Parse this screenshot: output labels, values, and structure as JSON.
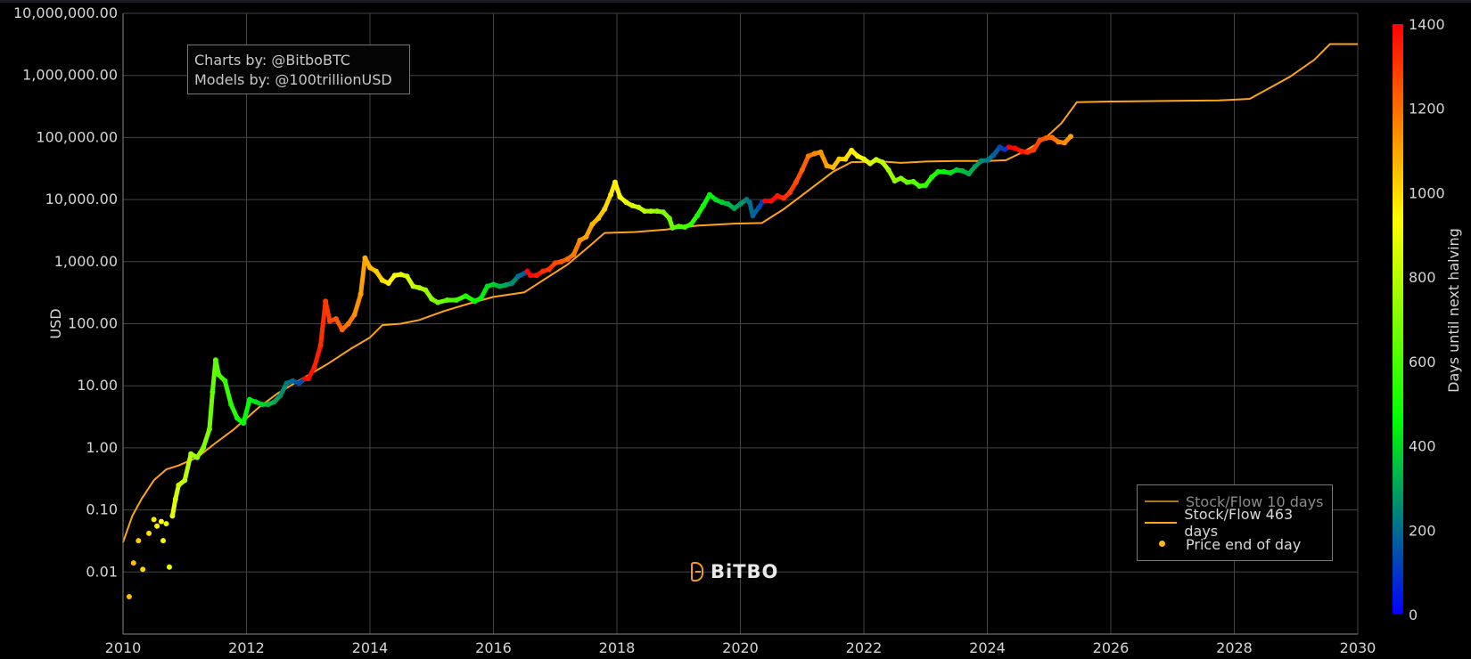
{
  "credits": {
    "line1": "Charts by: @BitboBTC",
    "line2": "Models by: @100trillionUSD"
  },
  "brand": {
    "name": "BiTBO"
  },
  "legend": {
    "items": [
      {
        "label": "Stock/Flow 10 days",
        "color": "#a9761a",
        "kind": "line",
        "dim": true
      },
      {
        "label": "Stock/Flow 463 days",
        "color": "#ffa31a",
        "kind": "line",
        "dim": false
      },
      {
        "label": "Price end of day",
        "color": "#ffb81a",
        "kind": "marker",
        "dim": false
      }
    ]
  },
  "colorbar": {
    "title": "Days until next halving",
    "min": 0,
    "max": 1400,
    "ticks": [
      0,
      200,
      400,
      600,
      800,
      1000,
      1200,
      1400
    ],
    "colorscale": [
      "#0000ff",
      "#00ff00",
      "#ffff00",
      "#ff0000"
    ]
  },
  "chart_data": {
    "type": "scatter",
    "ylabel": "USD",
    "xlabel": "",
    "yscale": "log",
    "xlim": [
      2010,
      2030
    ],
    "ylim": [
      0.001,
      10000000
    ],
    "x_ticks": [
      "2010",
      "2012",
      "2014",
      "2016",
      "2018",
      "2020",
      "2022",
      "2024",
      "2026",
      "2028",
      "2030"
    ],
    "y_ticks": [
      {
        "value": 0.01,
        "label": "0.01"
      },
      {
        "value": 0.1,
        "label": "0.10"
      },
      {
        "value": 1,
        "label": "1.00"
      },
      {
        "value": 10,
        "label": "10.00"
      },
      {
        "value": 100,
        "label": "100.00"
      },
      {
        "value": 1000,
        "label": "1,000.00"
      },
      {
        "value": 10000,
        "label": "10,000.00"
      },
      {
        "value": 100000,
        "label": "100,000.00"
      },
      {
        "value": 1000000,
        "label": "1,000,000.00"
      },
      {
        "value": 10000000,
        "label": "10,000,000.00"
      }
    ],
    "grid": true,
    "legend_position": "bottom-right",
    "series": [
      {
        "name": "Stock/Flow 463 days",
        "kind": "line",
        "color": "#ffa31a",
        "points": [
          [
            2010.0,
            0.03
          ],
          [
            2010.15,
            0.08
          ],
          [
            2010.3,
            0.15
          ],
          [
            2010.5,
            0.3
          ],
          [
            2010.7,
            0.45
          ],
          [
            2010.9,
            0.52
          ],
          [
            2011.2,
            0.7
          ],
          [
            2011.5,
            1.2
          ],
          [
            2011.8,
            2.0
          ],
          [
            2012.2,
            4.5
          ],
          [
            2012.5,
            7.5
          ],
          [
            2012.9,
            13
          ],
          [
            2013.3,
            22
          ],
          [
            2013.7,
            40
          ],
          [
            2014.0,
            60
          ],
          [
            2014.2,
            95
          ],
          [
            2014.5,
            100
          ],
          [
            2014.8,
            115
          ],
          [
            2015.2,
            160
          ],
          [
            2015.6,
            210
          ],
          [
            2016.0,
            270
          ],
          [
            2016.5,
            320
          ],
          [
            2016.8,
            500
          ],
          [
            2017.2,
            900
          ],
          [
            2017.5,
            1600
          ],
          [
            2017.8,
            2900
          ],
          [
            2018.3,
            3000
          ],
          [
            2018.8,
            3300
          ],
          [
            2019.3,
            3800
          ],
          [
            2019.9,
            4100
          ],
          [
            2020.35,
            4200
          ],
          [
            2020.7,
            7000
          ],
          [
            2021.1,
            14000
          ],
          [
            2021.5,
            28000
          ],
          [
            2021.8,
            40000
          ],
          [
            2022.3,
            41000
          ],
          [
            2022.6,
            39000
          ],
          [
            2023.0,
            41000
          ],
          [
            2023.5,
            42000
          ],
          [
            2024.0,
            42000
          ],
          [
            2024.3,
            43000
          ],
          [
            2024.6,
            60000
          ],
          [
            2024.9,
            90000
          ],
          [
            2025.2,
            170000
          ],
          [
            2025.45,
            370000
          ],
          [
            2026.0,
            380000
          ],
          [
            2027.0,
            390000
          ],
          [
            2027.75,
            395000
          ],
          [
            2028.25,
            420000
          ],
          [
            2028.6,
            650000
          ],
          [
            2028.9,
            950000
          ],
          [
            2029.3,
            1800000
          ],
          [
            2029.55,
            3200000
          ],
          [
            2030.0,
            3200000
          ]
        ]
      },
      {
        "name": "Price end of day",
        "kind": "marker",
        "color_by": "days_until_halving",
        "points": [
          [
            2010.1,
            0.004,
            1050
          ],
          [
            2010.17,
            0.014,
            1040
          ],
          [
            2010.25,
            0.032,
            1020
          ],
          [
            2010.32,
            0.011,
            1000
          ],
          [
            2010.42,
            0.042,
            980
          ],
          [
            2010.5,
            0.07,
            960
          ],
          [
            2010.55,
            0.055,
            940
          ],
          [
            2010.62,
            0.065,
            920
          ],
          [
            2010.65,
            0.032,
            910
          ],
          [
            2010.7,
            0.06,
            900
          ],
          [
            2010.75,
            0.012,
            890
          ],
          [
            2010.8,
            0.08,
            880
          ],
          [
            2010.85,
            0.15,
            850
          ],
          [
            2010.9,
            0.25,
            830
          ],
          [
            2011.0,
            0.3,
            800
          ],
          [
            2011.1,
            0.8,
            760
          ],
          [
            2011.2,
            0.7,
            730
          ],
          [
            2011.3,
            1.0,
            700
          ],
          [
            2011.4,
            2.0,
            660
          ],
          [
            2011.45,
            8,
            640
          ],
          [
            2011.5,
            26,
            620
          ],
          [
            2011.55,
            15,
            600
          ],
          [
            2011.65,
            12,
            560
          ],
          [
            2011.75,
            5,
            530
          ],
          [
            2011.85,
            3,
            500
          ],
          [
            2011.95,
            2.5,
            470
          ],
          [
            2012.05,
            6,
            440
          ],
          [
            2012.15,
            5.5,
            410
          ],
          [
            2012.25,
            5,
            380
          ],
          [
            2012.35,
            5,
            340
          ],
          [
            2012.45,
            5.5,
            300
          ],
          [
            2012.55,
            7,
            260
          ],
          [
            2012.65,
            11,
            220
          ],
          [
            2012.75,
            12,
            180
          ],
          [
            2012.85,
            11,
            140
          ],
          [
            2012.95,
            13,
            1390
          ],
          [
            2013.0,
            13,
            1370
          ],
          [
            2013.1,
            20,
            1340
          ],
          [
            2013.2,
            45,
            1310
          ],
          [
            2013.28,
            230,
            1290
          ],
          [
            2013.35,
            110,
            1270
          ],
          [
            2013.45,
            120,
            1240
          ],
          [
            2013.55,
            80,
            1200
          ],
          [
            2013.65,
            100,
            1170
          ],
          [
            2013.75,
            140,
            1130
          ],
          [
            2013.85,
            300,
            1100
          ],
          [
            2013.92,
            1150,
            1080
          ],
          [
            2014.0,
            800,
            1050
          ],
          [
            2014.1,
            700,
            1020
          ],
          [
            2014.2,
            500,
            980
          ],
          [
            2014.3,
            450,
            950
          ],
          [
            2014.4,
            600,
            920
          ],
          [
            2014.5,
            620,
            880
          ],
          [
            2014.6,
            580,
            850
          ],
          [
            2014.7,
            400,
            810
          ],
          [
            2014.8,
            380,
            780
          ],
          [
            2014.9,
            350,
            740
          ],
          [
            2015.0,
            250,
            700
          ],
          [
            2015.1,
            220,
            670
          ],
          [
            2015.25,
            240,
            620
          ],
          [
            2015.4,
            240,
            570
          ],
          [
            2015.55,
            280,
            520
          ],
          [
            2015.7,
            230,
            470
          ],
          [
            2015.8,
            260,
            440
          ],
          [
            2015.9,
            400,
            400
          ],
          [
            2016.0,
            430,
            370
          ],
          [
            2016.1,
            400,
            330
          ],
          [
            2016.2,
            420,
            290
          ],
          [
            2016.3,
            450,
            250
          ],
          [
            2016.4,
            580,
            200
          ],
          [
            2016.5,
            650,
            160
          ],
          [
            2016.55,
            700,
            1390
          ],
          [
            2016.6,
            600,
            1380
          ],
          [
            2016.7,
            600,
            1350
          ],
          [
            2016.8,
            700,
            1320
          ],
          [
            2016.9,
            750,
            1290
          ],
          [
            2017.0,
            950,
            1260
          ],
          [
            2017.1,
            1000,
            1230
          ],
          [
            2017.2,
            1100,
            1200
          ],
          [
            2017.3,
            1300,
            1170
          ],
          [
            2017.4,
            2200,
            1130
          ],
          [
            2017.5,
            2500,
            1100
          ],
          [
            2017.6,
            4000,
            1060
          ],
          [
            2017.7,
            5000,
            1030
          ],
          [
            2017.8,
            7000,
            1000
          ],
          [
            2017.9,
            12000,
            970
          ],
          [
            2017.97,
            19000,
            950
          ],
          [
            2018.05,
            11000,
            920
          ],
          [
            2018.15,
            9000,
            890
          ],
          [
            2018.25,
            8000,
            860
          ],
          [
            2018.35,
            7500,
            820
          ],
          [
            2018.45,
            6500,
            790
          ],
          [
            2018.55,
            6500,
            760
          ],
          [
            2018.65,
            6500,
            720
          ],
          [
            2018.75,
            6300,
            690
          ],
          [
            2018.85,
            5000,
            660
          ],
          [
            2018.9,
            3500,
            640
          ],
          [
            2019.0,
            3700,
            610
          ],
          [
            2019.1,
            3600,
            580
          ],
          [
            2019.2,
            4000,
            550
          ],
          [
            2019.3,
            5500,
            510
          ],
          [
            2019.4,
            8000,
            480
          ],
          [
            2019.5,
            12000,
            440
          ],
          [
            2019.6,
            10000,
            410
          ],
          [
            2019.7,
            9000,
            370
          ],
          [
            2019.8,
            8500,
            340
          ],
          [
            2019.9,
            7200,
            300
          ],
          [
            2020.0,
            8500,
            270
          ],
          [
            2020.1,
            10000,
            230
          ],
          [
            2020.15,
            9000,
            200
          ],
          [
            2020.2,
            5500,
            180
          ],
          [
            2020.3,
            7500,
            140
          ],
          [
            2020.35,
            9000,
            110
          ],
          [
            2020.4,
            9500,
            1400
          ],
          [
            2020.5,
            9500,
            1380
          ],
          [
            2020.6,
            11500,
            1350
          ],
          [
            2020.7,
            10500,
            1310
          ],
          [
            2020.8,
            13000,
            1280
          ],
          [
            2020.9,
            19000,
            1250
          ],
          [
            2021.0,
            30000,
            1220
          ],
          [
            2021.1,
            50000,
            1180
          ],
          [
            2021.2,
            55000,
            1150
          ],
          [
            2021.3,
            58000,
            1120
          ],
          [
            2021.4,
            35000,
            1090
          ],
          [
            2021.5,
            33000,
            1050
          ],
          [
            2021.6,
            45000,
            1020
          ],
          [
            2021.7,
            45000,
            990
          ],
          [
            2021.8,
            62000,
            950
          ],
          [
            2021.9,
            50000,
            920
          ],
          [
            2022.0,
            45000,
            890
          ],
          [
            2022.1,
            38000,
            860
          ],
          [
            2022.2,
            44000,
            820
          ],
          [
            2022.3,
            40000,
            790
          ],
          [
            2022.4,
            30000,
            750
          ],
          [
            2022.5,
            20000,
            720
          ],
          [
            2022.6,
            22000,
            690
          ],
          [
            2022.7,
            19000,
            650
          ],
          [
            2022.8,
            19500,
            620
          ],
          [
            2022.9,
            16500,
            590
          ],
          [
            2023.0,
            17000,
            550
          ],
          [
            2023.1,
            23000,
            520
          ],
          [
            2023.2,
            28000,
            490
          ],
          [
            2023.3,
            28000,
            450
          ],
          [
            2023.4,
            27000,
            420
          ],
          [
            2023.5,
            30000,
            380
          ],
          [
            2023.6,
            29000,
            350
          ],
          [
            2023.7,
            26000,
            320
          ],
          [
            2023.8,
            34000,
            280
          ],
          [
            2023.9,
            42000,
            250
          ],
          [
            2024.0,
            43000,
            210
          ],
          [
            2024.1,
            52000,
            170
          ],
          [
            2024.2,
            70000,
            130
          ],
          [
            2024.28,
            64000,
            100
          ],
          [
            2024.35,
            70000,
            1400
          ],
          [
            2024.45,
            67000,
            1380
          ],
          [
            2024.55,
            60000,
            1350
          ],
          [
            2024.65,
            58000,
            1310
          ],
          [
            2024.75,
            63000,
            1280
          ],
          [
            2024.85,
            90000,
            1250
          ],
          [
            2024.95,
            98000,
            1220
          ],
          [
            2025.05,
            100000,
            1190
          ],
          [
            2025.15,
            85000,
            1160
          ],
          [
            2025.25,
            82000,
            1130
          ],
          [
            2025.35,
            104000,
            1100
          ]
        ]
      }
    ]
  }
}
